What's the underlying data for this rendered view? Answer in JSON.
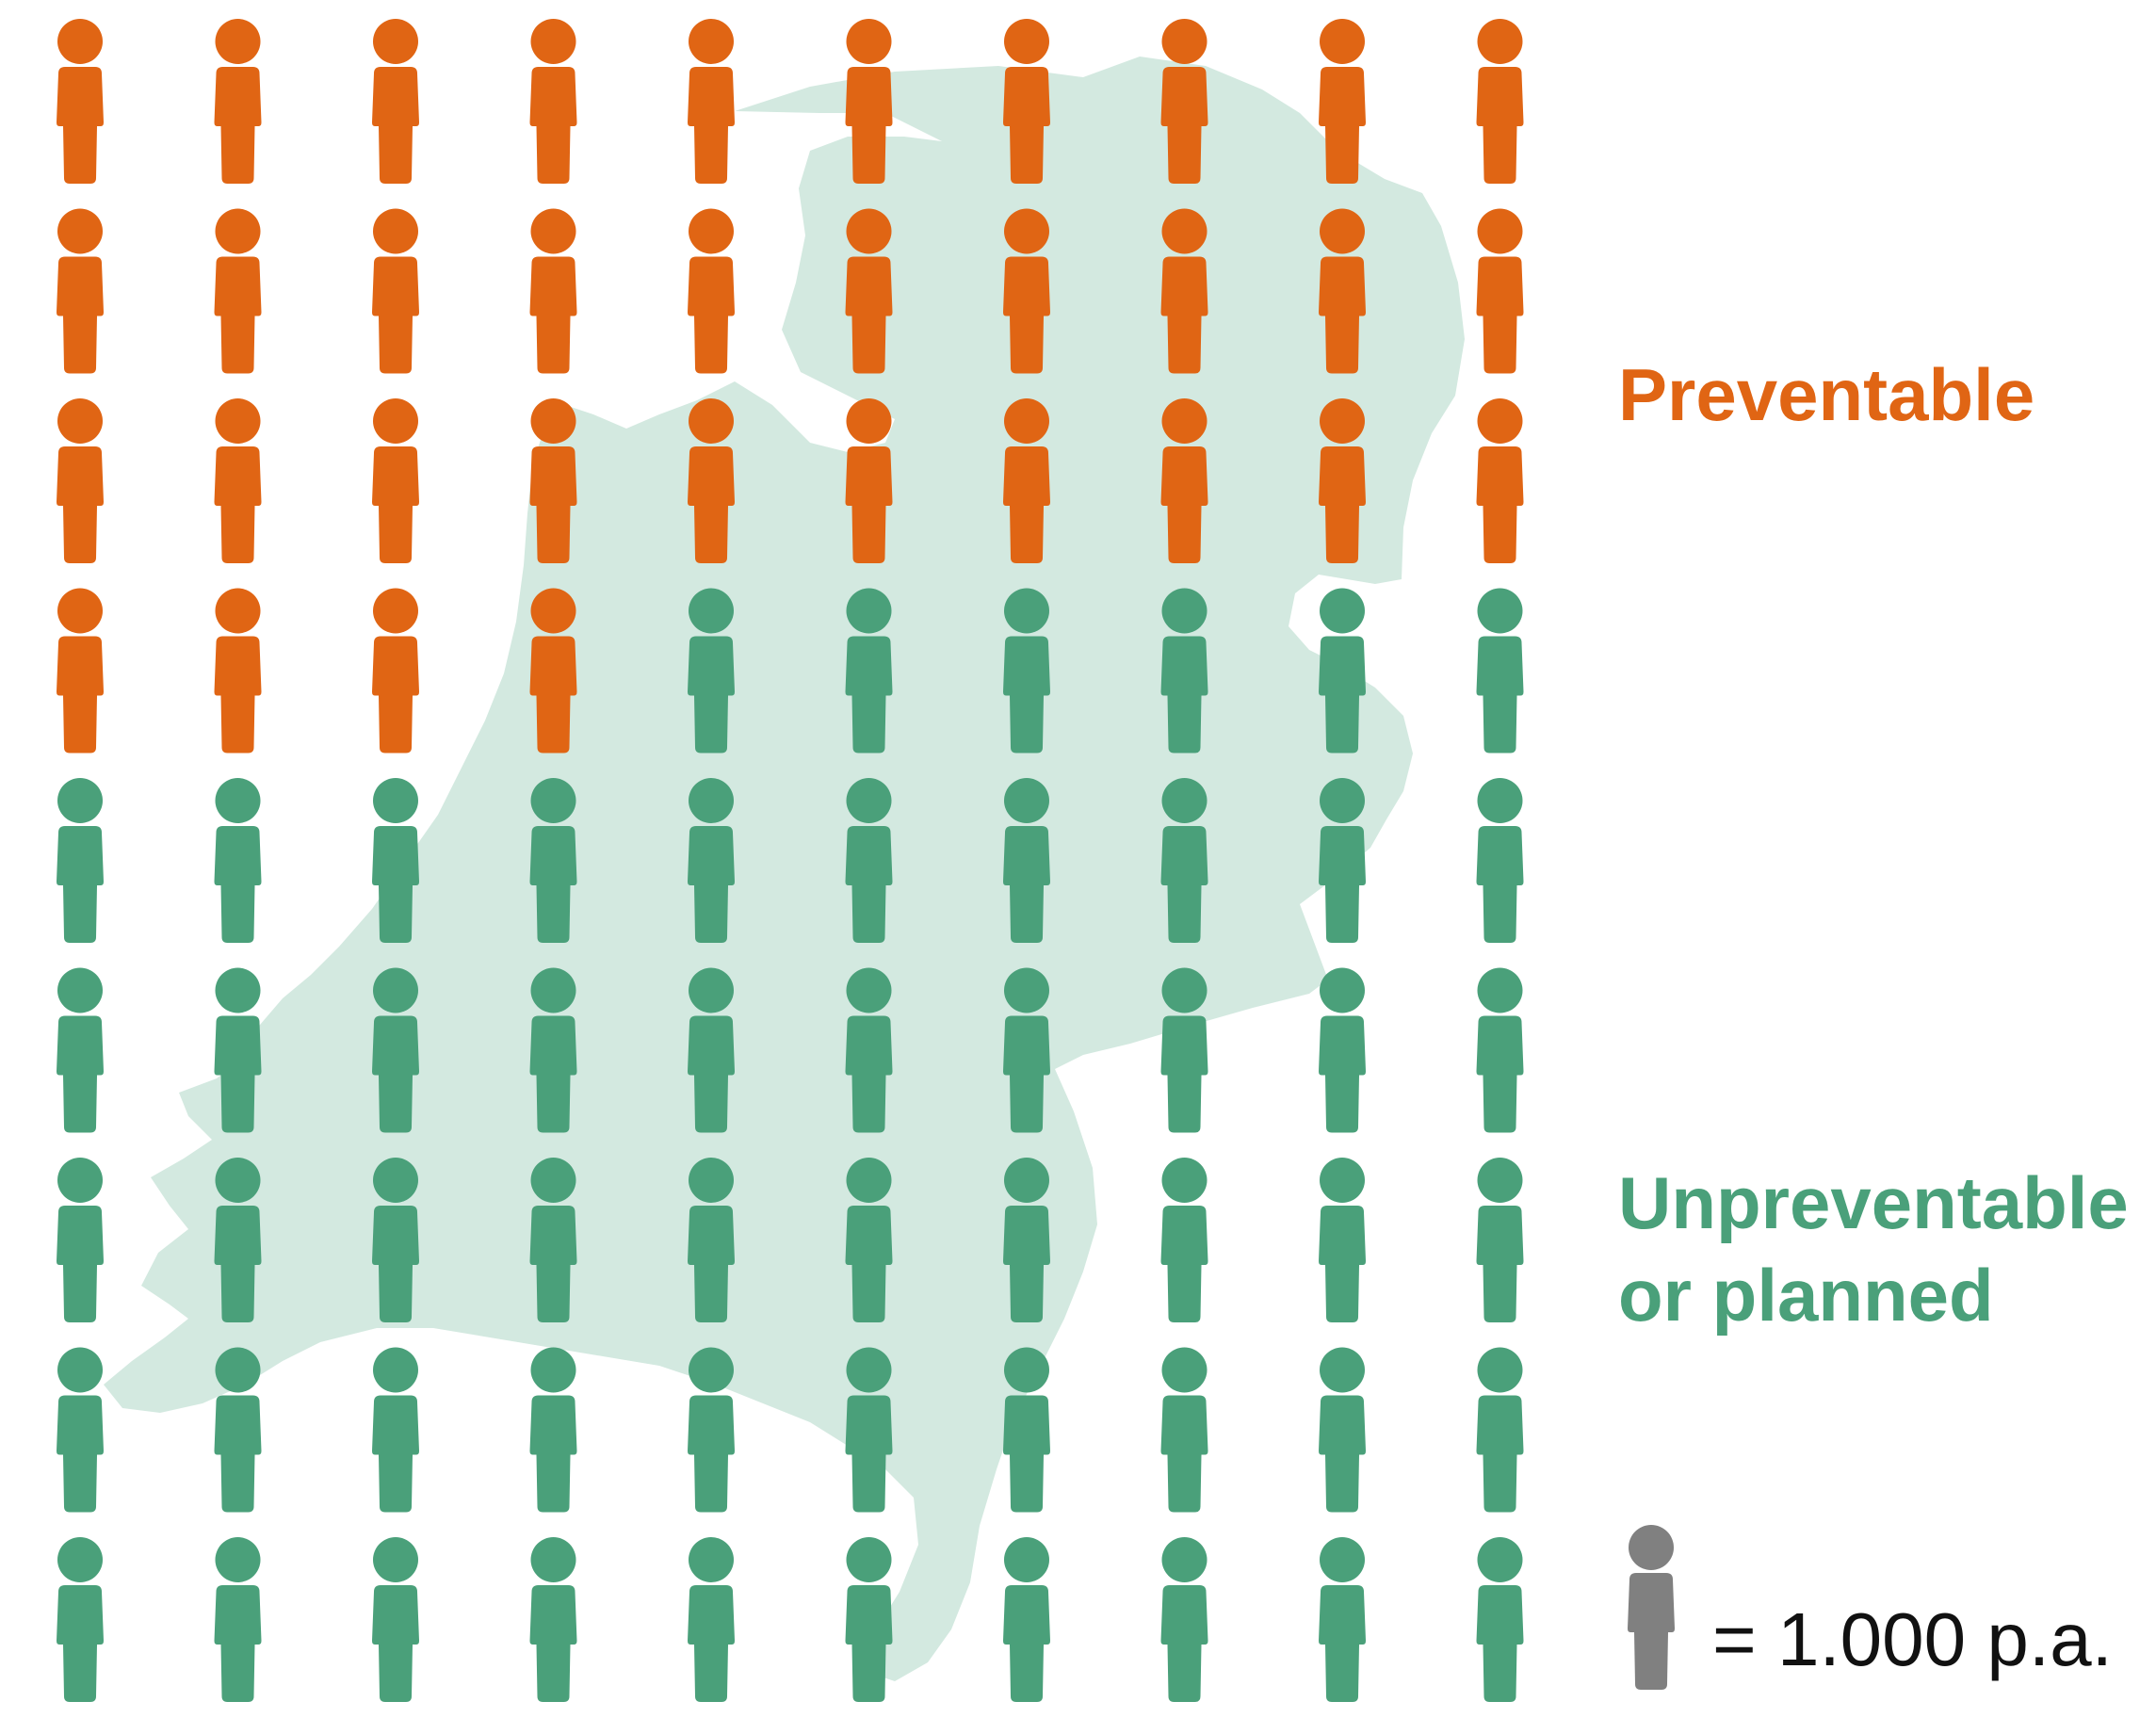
{
  "colors": {
    "preventable": "#E06514",
    "unpreventable": "#4AA07A",
    "map": "#D3E9E0",
    "legend_icon": "#808080",
    "background": "#FFFFFF"
  },
  "chart_data": {
    "type": "pictogram",
    "unit_value": 1000,
    "unit_label": "= 1.000 p.a.",
    "grid": {
      "rows": 9,
      "columns": 10,
      "total_icons": 90
    },
    "series": [
      {
        "name": "Preventable",
        "icons": 34,
        "value": 34000
      },
      {
        "name": "Unpreventable or planned",
        "icons": 56,
        "value": 56000
      }
    ],
    "background": "map of the Netherlands"
  },
  "labels": {
    "preventable": "Preventable",
    "unpreventable_line1": "Unpreventable",
    "unpreventable_line2": "or planned"
  },
  "legend": {
    "text": "= 1.000 p.a.",
    "icon": "person-icon"
  }
}
